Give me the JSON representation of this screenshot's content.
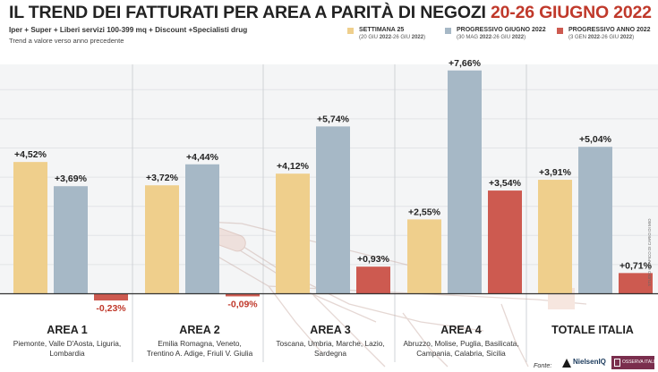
{
  "header": {
    "title_main": "IL TREND DEI FATTURATI PER AREA A PARITÀ DI NEGOZI",
    "title_date": "20-26 GIUGNO 2022",
    "subtitle": "Iper + Super + Liberi servizi 100-399 mq + Discount +Specialisti drug",
    "note": "Trend a valore verso anno precedente"
  },
  "legend": [
    {
      "label": "SETTIMANA 25",
      "sub_a": "(20 GIU ",
      "sub_b": "2022",
      "sub_c": "-26 GIU ",
      "sub_d": "2022",
      "sub_e": ")",
      "color": "#efcf8c"
    },
    {
      "label": "PROGRESSIVO GIUGNO 2022",
      "sub_a": "(30 MAG ",
      "sub_b": "2022",
      "sub_c": "-26 GIU ",
      "sub_d": "2022",
      "sub_e": ")",
      "color": "#a6b8c6"
    },
    {
      "label": "PROGRESSIVO ANNO 2022",
      "sub_a": "(3 GEN ",
      "sub_b": "2022",
      "sub_c": "-26 GIU ",
      "sub_d": "2022",
      "sub_e": ")",
      "color": "#cd5a50"
    }
  ],
  "chart_data": {
    "type": "bar",
    "categories": [
      "AREA 1",
      "AREA 2",
      "AREA 3",
      "AREA 4",
      "TOTALE ITALIA"
    ],
    "category_regions": [
      [
        "Piemonte, Valle D'Aosta, Liguria,",
        "Lombardia"
      ],
      [
        "Emilia Romagna, Veneto,",
        "Trentino A. Adige, Friuli V. Giulia"
      ],
      [
        "Toscana, Umbria, Marche, Lazio,",
        "Sardegna"
      ],
      [
        "Abruzzo, Molise, Puglia, Basilicata,",
        "Campania, Calabria, Sicilia"
      ],
      []
    ],
    "series": [
      {
        "name": "SETTIMANA 25",
        "values": [
          4.52,
          3.72,
          4.12,
          2.55,
          3.91
        ],
        "labels": [
          "+4,52%",
          "+3,72%",
          "+4,12%",
          "+2,55%",
          "+3,91%"
        ]
      },
      {
        "name": "PROGRESSIVO GIUGNO 2022",
        "values": [
          3.69,
          4.44,
          5.74,
          7.66,
          5.04
        ],
        "labels": [
          "+3,69%",
          "+4,44%",
          "+5,74%",
          "+7,66%",
          "+5,04%"
        ]
      },
      {
        "name": "PROGRESSIVO ANNO 2022",
        "values": [
          -0.23,
          -0.09,
          0.93,
          3.54,
          0.71
        ],
        "labels": [
          "-0,23%",
          "-0,09%",
          "+0,93%",
          "+3,54%",
          "+0,71%"
        ]
      }
    ],
    "colors": [
      "#efcf8c",
      "#a6b8c6",
      "#cd5a50"
    ],
    "negative_label_color": "#c0392b",
    "ylim": [
      -0.6,
      8.0
    ],
    "grid": true,
    "legend_position": "top-right"
  },
  "footer": {
    "fonte": "Fonte:",
    "logo_nielsen": "NielsenIQ",
    "logo_oss": "OSSERVA ITALIA",
    "credit": "STUDIO GRAFICO DI CARIO DI MIO"
  }
}
